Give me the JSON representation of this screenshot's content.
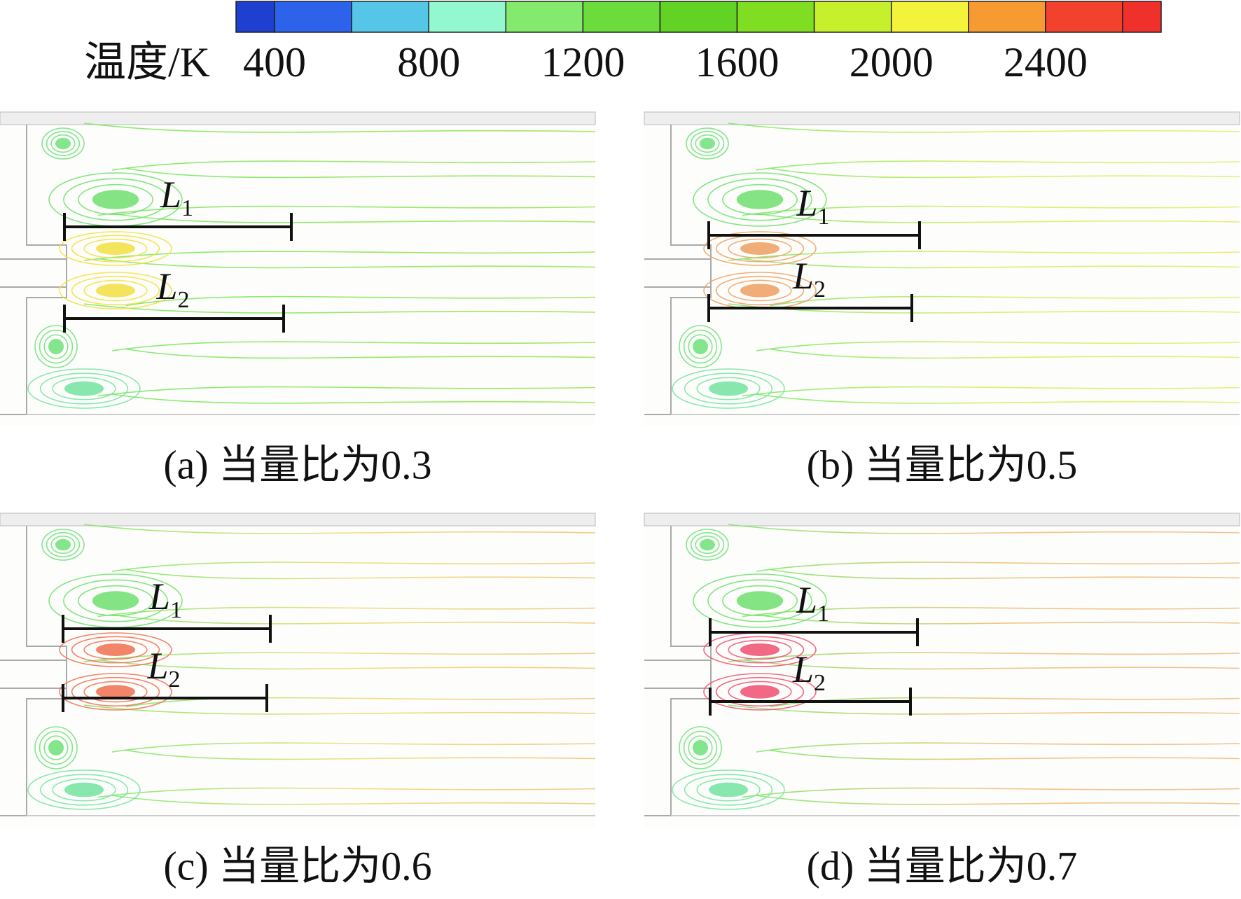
{
  "colorbar": {
    "label": "温度/K",
    "levels": [
      300,
      400,
      600,
      800,
      1000,
      1200,
      1400,
      1600,
      1800,
      2000,
      2200,
      2400,
      2600,
      2700
    ],
    "colors": [
      "#1f3fd0",
      "#2d63ea",
      "#56c6e8",
      "#93f7cf",
      "#84ea6e",
      "#6cdb3c",
      "#62d224",
      "#7fde22",
      "#c6f02c",
      "#f3f33c",
      "#f59b32",
      "#f2412c",
      "#f0302a"
    ],
    "ticks": [
      400,
      800,
      1200,
      1600,
      2000,
      2400
    ]
  },
  "panels": [
    {
      "caption": "(a) 当量比为0.3",
      "label1": "L",
      "sub1": "1",
      "label2": "L",
      "sub2": "2"
    },
    {
      "caption": "(b) 当量比为0.5",
      "label1": "L",
      "sub1": "1",
      "label2": "L",
      "sub2": "2"
    },
    {
      "caption": "(c) 当量比为0.6",
      "label1": "L",
      "sub1": "1",
      "label2": "L",
      "sub2": "2"
    },
    {
      "caption": "(d) 当量比为0.7",
      "label1": "L",
      "sub1": "1",
      "label2": "L",
      "sub2": "2"
    }
  ]
}
